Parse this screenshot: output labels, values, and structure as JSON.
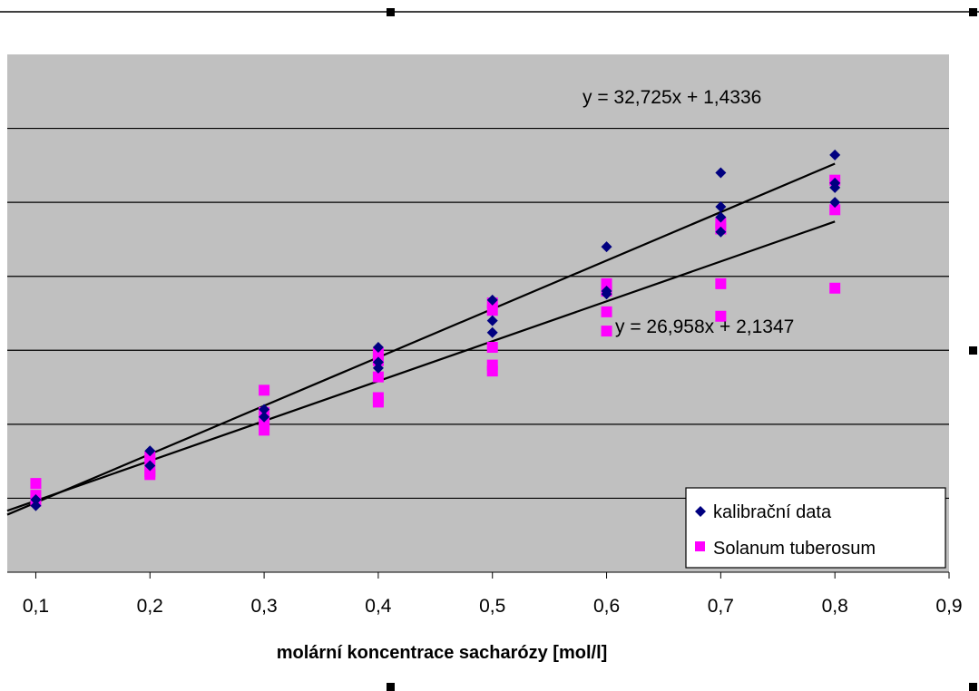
{
  "chart_data": {
    "type": "scatter",
    "title": "",
    "xlabel": "molární koncentrace sacharózy [mol/l]",
    "ylabel": "",
    "xlim": [
      0.075,
      0.9
    ],
    "ylim": [
      0,
      35
    ],
    "grid": "horizontal",
    "x_ticks": [
      "0,1",
      "0,2",
      "0,3",
      "0,4",
      "0,5",
      "0,6",
      "0,7",
      "0,8",
      "0,9"
    ],
    "legend_position": "bottom-right",
    "colors": {
      "plot_bg": "#c0c0c0",
      "series1": "#000080",
      "series2": "#ff00ff"
    },
    "series": [
      {
        "name": "kalibrační data",
        "marker": "diamond",
        "color": "#000080",
        "points": [
          [
            0.1,
            4.5
          ],
          [
            0.1,
            4.9
          ],
          [
            0.2,
            8.2
          ],
          [
            0.2,
            7.2
          ],
          [
            0.3,
            11.0
          ],
          [
            0.3,
            10.5
          ],
          [
            0.4,
            15.2
          ],
          [
            0.4,
            13.8
          ],
          [
            0.4,
            14.2
          ],
          [
            0.5,
            18.4
          ],
          [
            0.5,
            17.0
          ],
          [
            0.5,
            16.2
          ],
          [
            0.6,
            22.0
          ],
          [
            0.6,
            19.0
          ],
          [
            0.6,
            18.8
          ],
          [
            0.7,
            27.0
          ],
          [
            0.7,
            24.7
          ],
          [
            0.7,
            24.0
          ],
          [
            0.7,
            23.0
          ],
          [
            0.8,
            28.2
          ],
          [
            0.8,
            26.3
          ],
          [
            0.8,
            26.0
          ],
          [
            0.8,
            25.0
          ]
        ]
      },
      {
        "name": "Solanum tuberosum",
        "marker": "square",
        "color": "#ff00ff",
        "points": [
          [
            0.1,
            6.0
          ],
          [
            0.1,
            4.8
          ],
          [
            0.1,
            5.2
          ],
          [
            0.2,
            7.8
          ],
          [
            0.2,
            7.5
          ],
          [
            0.2,
            6.8
          ],
          [
            0.2,
            6.6
          ],
          [
            0.3,
            12.3
          ],
          [
            0.3,
            10.8
          ],
          [
            0.3,
            10.2
          ],
          [
            0.3,
            9.6
          ],
          [
            0.4,
            14.8
          ],
          [
            0.4,
            14.3
          ],
          [
            0.4,
            13.2
          ],
          [
            0.4,
            11.8
          ],
          [
            0.4,
            11.5
          ],
          [
            0.5,
            18.2
          ],
          [
            0.5,
            17.7
          ],
          [
            0.5,
            15.2
          ],
          [
            0.5,
            14.0
          ],
          [
            0.5,
            13.6
          ],
          [
            0.6,
            19.5
          ],
          [
            0.6,
            19.0
          ],
          [
            0.6,
            17.6
          ],
          [
            0.6,
            16.3
          ],
          [
            0.7,
            23.6
          ],
          [
            0.7,
            23.2
          ],
          [
            0.7,
            19.5
          ],
          [
            0.7,
            17.3
          ],
          [
            0.8,
            26.5
          ],
          [
            0.8,
            24.5
          ],
          [
            0.8,
            19.2
          ]
        ]
      }
    ],
    "trendlines": [
      {
        "series": "kalibrační data",
        "slope": 32.725,
        "intercept": 1.4336,
        "x_range": [
          0.075,
          0.8
        ],
        "label": "y = 32,725x + 1,4336"
      },
      {
        "series": "Solanum tuberosum",
        "slope": 26.958,
        "intercept": 2.1347,
        "x_range": [
          0.075,
          0.8
        ],
        "label": "y = 26,958x + 2,1347"
      }
    ]
  }
}
